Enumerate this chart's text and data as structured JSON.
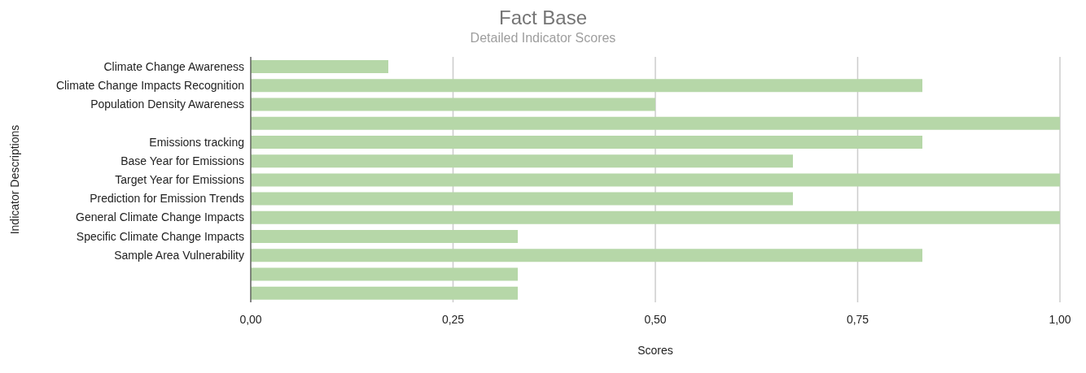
{
  "chart_data": {
    "type": "bar",
    "orientation": "horizontal",
    "title": "Fact Base",
    "subtitle": "Detailed Indicator Scores",
    "xlabel": "Scores",
    "ylabel": "Indicator Descriptions",
    "categories": [
      "Climate Change Awareness",
      "Climate Change Impacts Recognition",
      "Population Density Awareness",
      null,
      "Emissions tracking",
      "Base Year for Emissions",
      "Target Year for Emissions",
      "Prediction for Emission Trends",
      "General Climate Change Impacts",
      "Specific Climate Change Impacts",
      "Sample Area Vulnerability",
      null,
      null
    ],
    "values": [
      0.17,
      0.83,
      0.5,
      1,
      0.83,
      0.67,
      1,
      0.67,
      1,
      0.33,
      0.83,
      0.33,
      0.33
    ],
    "color": "#b6d7a8",
    "xlim": [
      0,
      1
    ],
    "xticks": [
      {
        "value": 0,
        "label": "0,00"
      },
      {
        "value": 0.25,
        "label": "0,25"
      },
      {
        "value": 0.5,
        "label": "0,50"
      },
      {
        "value": 0.75,
        "label": "0,75"
      },
      {
        "value": 1,
        "label": "1,00"
      }
    ],
    "grid": "x",
    "legend": false
  }
}
